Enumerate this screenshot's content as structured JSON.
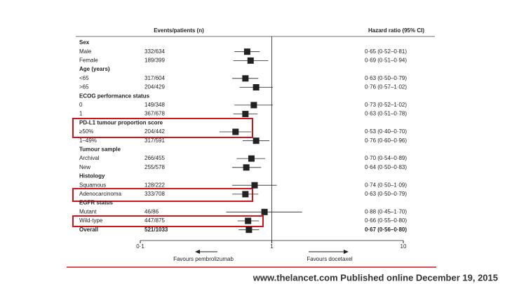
{
  "chart_data": {
    "type": "forest",
    "column_headers": [
      "Events/patients (n)",
      "Hazard ratio (95% CI)"
    ],
    "xscale": "log",
    "xlim": [
      0.1,
      10
    ],
    "xticks": [
      {
        "value": 0.1,
        "label": "0·1"
      },
      1,
      10
    ],
    "favours_left": "Favours pembrolizumab",
    "favours_right": "Favours docetaxel",
    "color": "#222222",
    "rows": [
      {
        "label": "Sex"
      },
      {
        "label": "Male",
        "events": "332/634",
        "hr": 0.65,
        "lo": 0.52,
        "hi": 0.81,
        "hr_label": "0·65 (0·52–0·81)"
      },
      {
        "label": "Female",
        "events": "189/399",
        "hr": 0.69,
        "lo": 0.51,
        "hi": 0.94,
        "hr_label": "0·69 (0·51–0·94)"
      },
      {
        "label": "Age (years)"
      },
      {
        "label": "<65",
        "events": "317/604",
        "hr": 0.63,
        "lo": 0.5,
        "hi": 0.79,
        "hr_label": "0·63 (0·50–0·79)"
      },
      {
        "label": ">65",
        "events": "204/429",
        "hr": 0.76,
        "lo": 0.57,
        "hi": 1.02,
        "hr_label": "0·76 (0·57–1·02)"
      },
      {
        "label": "ECOG performance status"
      },
      {
        "label": "0",
        "events": "149/348",
        "hr": 0.73,
        "lo": 0.52,
        "hi": 1.02,
        "hr_label": "0·73 (0·52–1·02)"
      },
      {
        "label": "1",
        "events": "367/678",
        "hr": 0.63,
        "lo": 0.51,
        "hi": 0.78,
        "hr_label": "0·63 (0·51–0·78)"
      },
      {
        "label": "PD-L1 tumour proportion score"
      },
      {
        "label": "≥50%",
        "events": "204/442",
        "hr": 0.53,
        "lo": 0.4,
        "hi": 0.7,
        "hr_label": "0·53 (0·40–0·70)"
      },
      {
        "label": "1–49%",
        "events": "317/591",
        "hr": 0.76,
        "lo": 0.6,
        "hi": 0.96,
        "hr_label": "0·76 (0·60–0·96)"
      },
      {
        "label": "Tumour sample"
      },
      {
        "label": "Archival",
        "events": "266/455",
        "hr": 0.7,
        "lo": 0.54,
        "hi": 0.89,
        "hr_label": "0·70 (0·54–0·89)"
      },
      {
        "label": "New",
        "events": "255/578",
        "hr": 0.64,
        "lo": 0.5,
        "hi": 0.83,
        "hr_label": "0·64 (0·50–0·83)"
      },
      {
        "label": "Histology"
      },
      {
        "label": "Squamous",
        "events": "128/222",
        "hr": 0.74,
        "lo": 0.5,
        "hi": 1.09,
        "hr_label": "0·74 (0·50–1·09)"
      },
      {
        "label": "Adenocarcinoma",
        "events": "333/708",
        "hr": 0.63,
        "lo": 0.5,
        "hi": 0.79,
        "hr_label": "0·63 (0·50–0·79)"
      },
      {
        "label": "EGFR status"
      },
      {
        "label": "Mutant",
        "events": "46/86",
        "hr": 0.88,
        "lo": 0.45,
        "hi": 1.7,
        "hr_label": "0·88 (0·45–1·70)"
      },
      {
        "label": "Wild-type",
        "events": "447/875",
        "hr": 0.66,
        "lo": 0.55,
        "hi": 0.8,
        "hr_label": "0·66 (0·55–0·80)"
      },
      {
        "label": "Overall",
        "events": "521/1033",
        "hr": 0.67,
        "lo": 0.56,
        "hi": 0.8,
        "hr_label": "0·67 (0·56–0·80)"
      }
    ]
  },
  "footer": "www.thelancet.com  Published online December 19, 2015"
}
